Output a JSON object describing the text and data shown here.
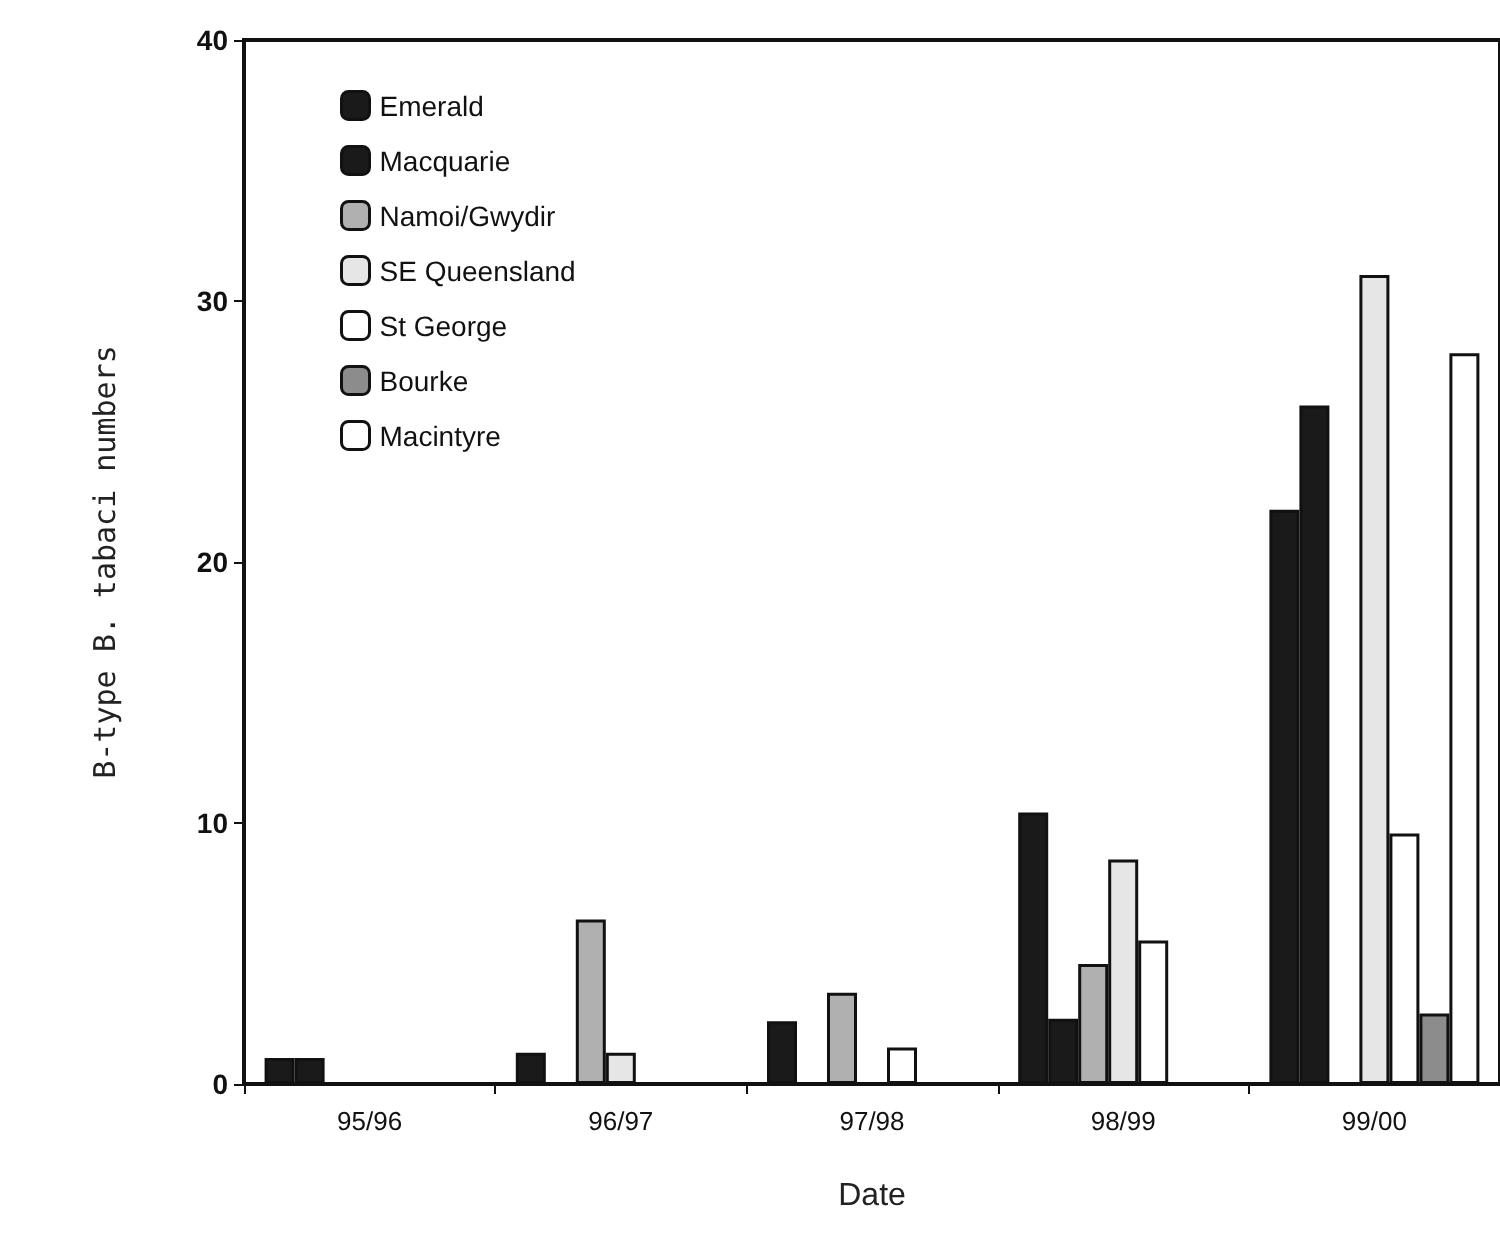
{
  "chart_data": {
    "type": "bar",
    "xlabel": "Date",
    "ylabel": "B-type B. tabaci numbers",
    "categories": [
      "95/96",
      "96/97",
      "97/98",
      "98/99",
      "99/00"
    ],
    "series": [
      {
        "name": "Emerald",
        "color": "#1a1a1a",
        "values": [
          1,
          1.2,
          2.4,
          10.4,
          22
        ]
      },
      {
        "name": "Macquarie",
        "color": "#1a1a1a",
        "values": [
          1,
          null,
          null,
          2.5,
          26
        ]
      },
      {
        "name": "Namoi/Gwydir",
        "color": "#b0b0b0",
        "values": [
          null,
          6.3,
          3.5,
          4.6,
          null
        ]
      },
      {
        "name": "SE Queensland",
        "color": "#e6e6e6",
        "values": [
          null,
          1.2,
          null,
          8.6,
          31
        ]
      },
      {
        "name": "St George",
        "color": "#ffffff",
        "values": [
          null,
          null,
          1.4,
          5.5,
          9.6
        ]
      },
      {
        "name": "Bourke",
        "color": "#8c8c8c",
        "values": [
          null,
          null,
          null,
          null,
          2.7
        ]
      },
      {
        "name": "Macintyre",
        "color": "#ffffff",
        "values": [
          null,
          null,
          null,
          null,
          28
        ]
      }
    ],
    "ylim": [
      0,
      40
    ],
    "yticks": [
      0,
      10,
      20,
      30,
      40
    ],
    "grid": false,
    "legend": "top left"
  }
}
